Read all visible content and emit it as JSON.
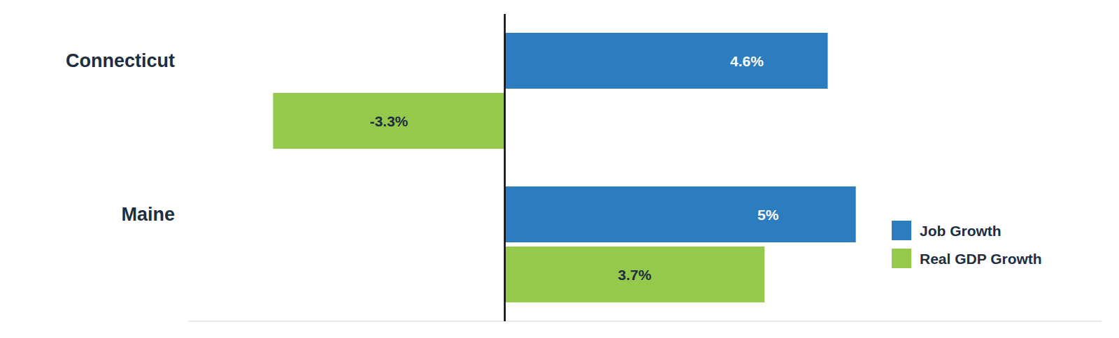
{
  "chart_data": {
    "type": "bar",
    "orientation": "horizontal",
    "categories": [
      "Connecticut",
      "Maine"
    ],
    "series": [
      {
        "name": "Job Growth",
        "color": "#2B7DC0",
        "values": [
          4.6,
          5.0
        ],
        "value_labels": [
          "4.6%",
          "5%"
        ]
      },
      {
        "name": "Real GDP Growth",
        "color": "#95C94B",
        "values": [
          -3.3,
          3.7
        ],
        "value_labels": [
          "-3.3%",
          "3.7%"
        ]
      }
    ],
    "xlim": [
      -4.5,
      8.5
    ],
    "data_labels": true,
    "tick_labels": "y",
    "grid": false,
    "legend": "right"
  }
}
